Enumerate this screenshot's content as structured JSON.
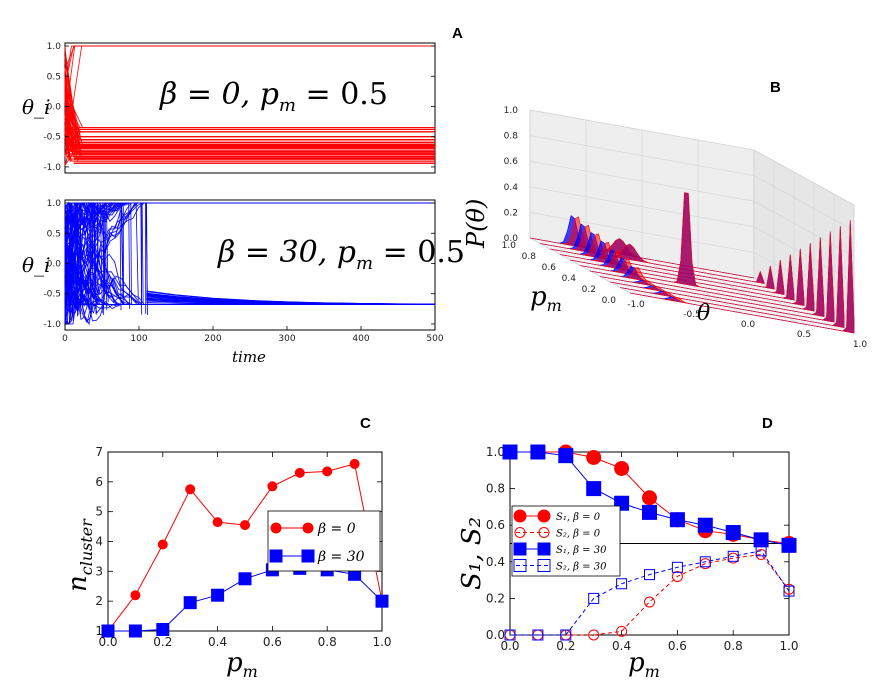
{
  "panels": {
    "A": {
      "label": "A"
    },
    "B": {
      "label": "B"
    },
    "C": {
      "label": "C"
    },
    "D": {
      "label": "D"
    }
  },
  "chart_data": [
    {
      "id": "A-top",
      "type": "line",
      "description_text": "β = 0, p_m = 0.5",
      "ylabel": "θ_i",
      "xlim": [
        0,
        500
      ],
      "ylim": [
        -1.1,
        1.05
      ],
      "yticks": [
        "1.0",
        "0.5",
        "0.0",
        "-0.5",
        "-1.0"
      ],
      "annotation": "β = 0, p",
      "annotation_sub": "m",
      "annotation_tail": " = 0.5",
      "color": "#ff0000",
      "final_levels": [
        1.0,
        -0.35,
        -0.38,
        -0.42,
        -0.5,
        -0.55,
        -0.6,
        -0.63,
        -0.66,
        -0.69,
        -0.72,
        -0.75,
        -0.78,
        -0.8,
        -0.83,
        -0.87,
        -0.9
      ]
    },
    {
      "id": "A-bottom",
      "type": "line",
      "ylabel": "θ_i",
      "xlabel": "time",
      "xlim": [
        0,
        500
      ],
      "ylim": [
        -1.1,
        1.05
      ],
      "xticks": [
        "0",
        "100",
        "200",
        "300",
        "400",
        "500"
      ],
      "yticks": [
        "1.0",
        "0.5",
        "0.0",
        "-0.5",
        "-1.0"
      ],
      "annotation": "β = 30, p",
      "annotation_sub": "m",
      "annotation_tail": " = 0.5",
      "color": "#0000ff",
      "final_levels": [
        1.0,
        -0.68
      ]
    },
    {
      "id": "B",
      "type": "area",
      "zlabel": "P(θ)",
      "xlabel": "θ",
      "ylabel": "p",
      "ylabel_sub": "m",
      "zticks": [
        "1.0",
        "0.8",
        "0.6",
        "0.4",
        "0.2",
        "0.0"
      ],
      "xticks": [
        "-1.0",
        "-0.5",
        "0.0",
        "0.5",
        "1.0"
      ],
      "yticks": [
        "1.0",
        "0.8",
        "0.6",
        "0.4",
        "0.2",
        "0.0"
      ],
      "series_colors": [
        "#0000ff",
        "#ff0000"
      ]
    },
    {
      "id": "C",
      "type": "line",
      "xlabel": "p",
      "xlabel_sub": "m",
      "ylabel": "n",
      "ylabel_sub": "cluster",
      "xlim": [
        0,
        1
      ],
      "ylim": [
        1,
        7
      ],
      "xticks": [
        "0.0",
        "0.2",
        "0.4",
        "0.6",
        "0.8",
        "1.0"
      ],
      "yticks": [
        "7",
        "6",
        "5",
        "4",
        "3",
        "2",
        "1"
      ],
      "x": [
        0.0,
        0.1,
        0.2,
        0.3,
        0.4,
        0.5,
        0.6,
        0.7,
        0.8,
        0.9,
        1.0
      ],
      "series": [
        {
          "name": "β = 0",
          "color": "#ff0000",
          "marker": "circle",
          "values": [
            1.0,
            2.2,
            3.9,
            5.75,
            4.65,
            4.55,
            5.85,
            6.3,
            6.35,
            6.6,
            2.0
          ]
        },
        {
          "name": "β = 30",
          "color": "#0000ff",
          "marker": "square",
          "values": [
            1.0,
            1.0,
            1.05,
            1.95,
            2.2,
            2.75,
            3.05,
            3.1,
            3.05,
            2.9,
            2.0
          ]
        }
      ],
      "legend": "center-right"
    },
    {
      "id": "D",
      "type": "line",
      "xlabel": "p",
      "xlabel_sub": "m",
      "ylabel": "S₁, S₂",
      "xlim": [
        0,
        1
      ],
      "ylim": [
        0,
        1
      ],
      "xticks": [
        "0.0",
        "0.2",
        "0.4",
        "0.6",
        "0.8",
        "1.0"
      ],
      "yticks": [
        "1.0",
        "0.8",
        "0.6",
        "0.4",
        "0.2",
        "0.0"
      ],
      "hline": 0.5,
      "x": [
        0.0,
        0.1,
        0.2,
        0.3,
        0.4,
        0.5,
        0.6,
        0.7,
        0.8,
        0.9,
        1.0
      ],
      "series": [
        {
          "name": "S₁, β = 0",
          "color": "#ff0000",
          "marker": "circle",
          "filled": true,
          "dashed": false,
          "values": [
            1.0,
            1.0,
            1.0,
            0.97,
            0.91,
            0.75,
            0.63,
            0.57,
            0.55,
            0.52,
            0.5
          ]
        },
        {
          "name": "S₂, β = 0",
          "color": "#ff0000",
          "marker": "circle",
          "filled": false,
          "dashed": true,
          "values": [
            0.0,
            0.0,
            0.0,
            0.0,
            0.02,
            0.18,
            0.32,
            0.39,
            0.42,
            0.44,
            0.25
          ]
        },
        {
          "name": "S₁, β = 30",
          "color": "#0000ff",
          "marker": "square",
          "filled": true,
          "dashed": false,
          "values": [
            1.0,
            1.0,
            0.98,
            0.8,
            0.72,
            0.67,
            0.63,
            0.6,
            0.56,
            0.52,
            0.49
          ]
        },
        {
          "name": "S₂, β = 30",
          "color": "#0000ff",
          "marker": "square",
          "filled": false,
          "dashed": true,
          "values": [
            0.0,
            0.0,
            0.0,
            0.2,
            0.28,
            0.33,
            0.37,
            0.4,
            0.43,
            0.46,
            0.24
          ]
        }
      ],
      "legend": "center-left"
    }
  ]
}
